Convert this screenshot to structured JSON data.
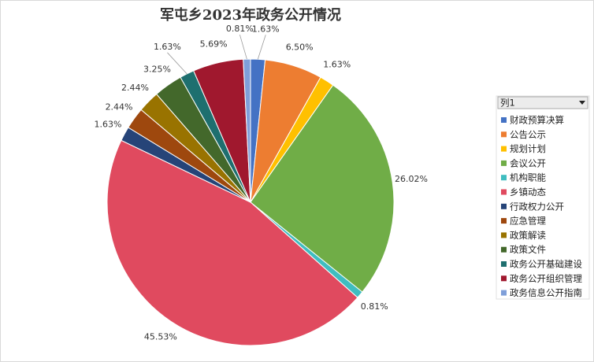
{
  "chart_data": {
    "type": "pie",
    "title": "军屯乡2023年政务公开情况",
    "legend_title": "列1",
    "categories": [
      "财政预算决算",
      "公告公示",
      "规划计划",
      "会议公开",
      "机构职能",
      "乡镇动态",
      "行政权力公开",
      "应急管理",
      "政策解读",
      "政策文件",
      "政务公开基础建设",
      "政务公开组织管理",
      "政务信息公开指南"
    ],
    "values": [
      1.63,
      6.5,
      1.63,
      26.02,
      0.81,
      45.53,
      1.63,
      2.44,
      2.44,
      3.25,
      1.63,
      5.69,
      0.81
    ],
    "value_labels": [
      "1.63%",
      "6.50%",
      "1.63%",
      "26.02%",
      "0.81%",
      "45.53%",
      "1.63%",
      "2.44%",
      "2.44%",
      "3.25%",
      "1.63%",
      "5.69%",
      "0.81%"
    ],
    "colors": [
      "#4472c4",
      "#ed7d31",
      "#ffc000",
      "#70ad47",
      "#3fbdc0",
      "#e04a5f",
      "#264478",
      "#9e480e",
      "#997300",
      "#43682b",
      "#1e6f6f",
      "#a0182e",
      "#7f9fd9"
    ],
    "legend_position": "right"
  }
}
